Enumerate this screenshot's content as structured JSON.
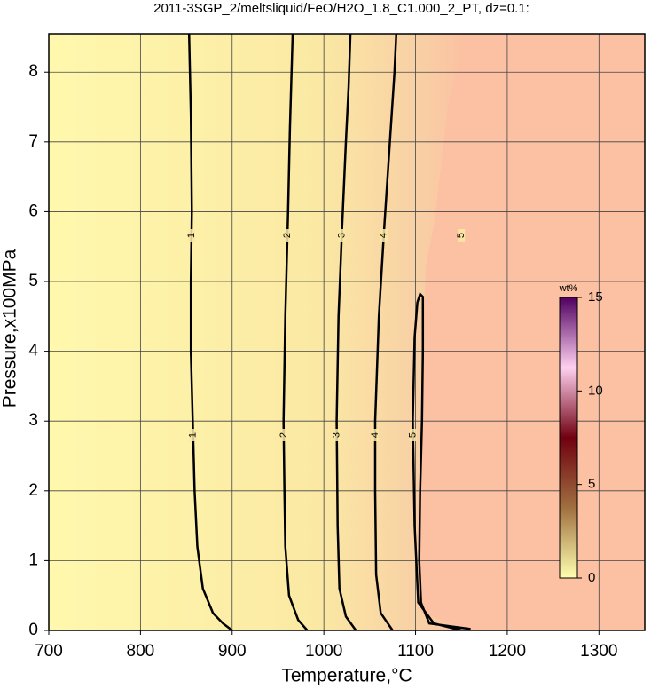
{
  "chart_data": {
    "type": "contour",
    "title": "2011-3SGP_2/meltsliquid/FeO/H2O_1.8_C1.000_2_PT, dz=0.1:",
    "x_label": "Temperature,°C",
    "y_label": "Pressure,x100MPa",
    "xlim": [
      700,
      1350
    ],
    "ylim": [
      0,
      8.55
    ],
    "xticks": [
      700,
      800,
      900,
      1000,
      1100,
      1200,
      1300
    ],
    "yticks": [
      0,
      1,
      2,
      3,
      4,
      5,
      6,
      7,
      8
    ],
    "grid": true,
    "series": [
      {
        "name": "1",
        "color": "#000000",
        "x": [
          900,
          890,
          879,
          868,
          862,
          859,
          857,
          855,
          855,
          856,
          855,
          853
        ],
        "values": [
          0,
          0.1,
          0.25,
          0.6,
          1.2,
          2.0,
          3.0,
          4.0,
          5.0,
          6.0,
          7.4,
          8.55
        ]
      },
      {
        "name": "2",
        "color": "#000000",
        "x": [
          982,
          972,
          962,
          958,
          957,
          956,
          958,
          961,
          963,
          966
        ],
        "values": [
          0,
          0.15,
          0.5,
          1.2,
          2.0,
          3.0,
          4.5,
          6.0,
          7.2,
          8.55
        ]
      },
      {
        "name": "3",
        "color": "#000000",
        "x": [
          1035,
          1024,
          1017,
          1015,
          1014,
          1016,
          1020,
          1024,
          1027,
          1029
        ],
        "values": [
          0,
          0.2,
          0.6,
          1.5,
          3.0,
          4.5,
          5.8,
          7.0,
          7.8,
          8.55
        ]
      },
      {
        "name": "4",
        "color": "#000000",
        "x": [
          1075,
          1062,
          1057,
          1056,
          1056,
          1060,
          1066,
          1072,
          1077,
          1079
        ],
        "values": [
          0,
          0.25,
          0.8,
          2.0,
          3.0,
          4.5,
          5.8,
          7.0,
          8.0,
          8.55
        ]
      },
      {
        "name": "5",
        "color": "#000000",
        "x": [
          1150,
          1120,
          1103,
          1099,
          1097,
          1099,
          1102,
          1105,
          1108,
          1108,
          1107,
          1105,
          1104,
          1106,
          1115,
          1160
        ],
        "values": [
          0,
          0.1,
          0.4,
          1.5,
          3.0,
          4.2,
          4.7,
          4.82,
          4.78,
          4.0,
          3.0,
          2.0,
          1.0,
          0.4,
          0.1,
          0.02
        ]
      }
    ],
    "colorbar": {
      "label": "wt%",
      "lim": [
        0,
        15
      ],
      "ticks": [
        0,
        5,
        10,
        15
      ],
      "colors": [
        "#ffffb0",
        "#a07040",
        "#700010",
        "#ffd0f0",
        "#500060"
      ]
    }
  }
}
